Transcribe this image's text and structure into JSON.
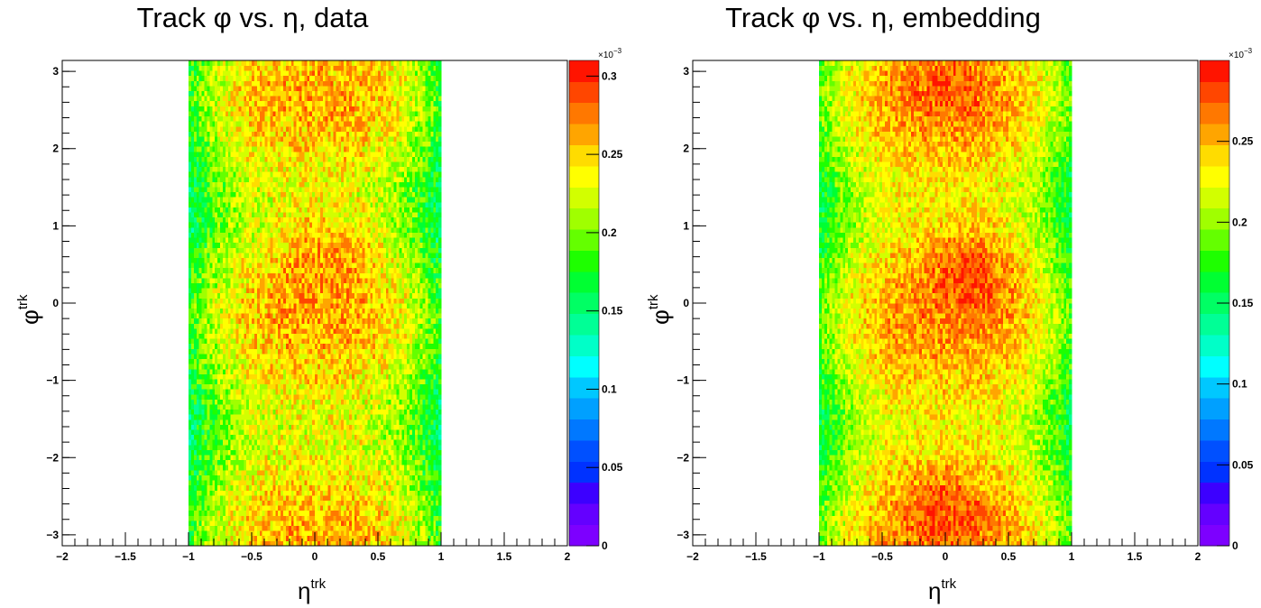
{
  "chart_data": [
    {
      "type": "heatmap",
      "title": "Track φ vs. η, data",
      "xlabel_base": "η",
      "xlabel_sup": "trk",
      "ylabel_base": "φ",
      "ylabel_sup": "trk",
      "xlim": [
        -2,
        2
      ],
      "ylim": [
        -3.14159,
        3.14159
      ],
      "x_ticks": [
        -2,
        -1.5,
        -1,
        -0.5,
        0,
        0.5,
        1,
        1.5,
        2
      ],
      "x_tick_labels": [
        "−2",
        "−1.5",
        "−1",
        "−0.5",
        "0",
        "0.5",
        "1",
        "1.5",
        "2"
      ],
      "y_ticks": [
        -3,
        -2,
        -1,
        0,
        1,
        2,
        3
      ],
      "y_tick_labels": [
        "−3",
        "−2",
        "−1",
        "0",
        "1",
        "2",
        "3"
      ],
      "filled_eta_range": [
        -1,
        1
      ],
      "colorbar": {
        "zlim": [
          0,
          0.31
        ],
        "multiplier_label": "×10",
        "multiplier_exp": "−3",
        "ticks": [
          0,
          0.05,
          0.1,
          0.15,
          0.2,
          0.25,
          0.3
        ],
        "tick_labels": [
          "0",
          "0.05",
          "0.1",
          "0.15",
          "0.2",
          "0.25",
          "0.3"
        ]
      },
      "density_profile": {
        "center_level": 0.245,
        "edge_level": 0.165,
        "phi_modulation": 0.015,
        "noise": 0.03,
        "hot_spots": [
          {
            "eta": 0.1,
            "phi": 0.7,
            "boost": 0.025
          }
        ]
      }
    },
    {
      "type": "heatmap",
      "title": "Track φ vs. η, embedding",
      "xlabel_base": "η",
      "xlabel_sup": "trk",
      "ylabel_base": "φ",
      "ylabel_sup": "trk",
      "xlim": [
        -2,
        2
      ],
      "ylim": [
        -3.14159,
        3.14159
      ],
      "x_ticks": [
        -2,
        -1.5,
        -1,
        -0.5,
        0,
        0.5,
        1,
        1.5,
        2
      ],
      "x_tick_labels": [
        "−2",
        "−1.5",
        "−1",
        "−0.5",
        "0",
        "0.5",
        "1",
        "1.5",
        "2"
      ],
      "y_ticks": [
        -3,
        -2,
        -1,
        0,
        1,
        2,
        3
      ],
      "y_tick_labels": [
        "−3",
        "−2",
        "−1",
        "0",
        "1",
        "2",
        "3"
      ],
      "filled_eta_range": [
        -1,
        1
      ],
      "colorbar": {
        "zlim": [
          0,
          0.3
        ],
        "multiplier_label": "×10",
        "multiplier_exp": "−3",
        "ticks": [
          0,
          0.05,
          0.1,
          0.15,
          0.2,
          0.25
        ],
        "tick_labels": [
          "0",
          "0.05",
          "0.1",
          "0.15",
          "0.2",
          "0.25"
        ]
      },
      "density_profile": {
        "center_level": 0.245,
        "edge_level": 0.17,
        "phi_modulation": 0.015,
        "noise": 0.025,
        "hot_spots": [
          {
            "eta": 0.2,
            "phi": 0.5,
            "boost": 0.035
          },
          {
            "eta": 0.0,
            "phi": -2.6,
            "boost": 0.025
          },
          {
            "eta": 0.0,
            "phi": 2.8,
            "boost": 0.015
          }
        ]
      }
    }
  ],
  "palette": [
    "#7d00ff",
    "#6400ff",
    "#3c00ff",
    "#0032ff",
    "#0050ff",
    "#0078ff",
    "#00a0ff",
    "#00c8ff",
    "#00ffff",
    "#00ffc8",
    "#00ff96",
    "#00ff64",
    "#00ff32",
    "#1eff00",
    "#64ff00",
    "#a0ff00",
    "#d2ff00",
    "#ffff00",
    "#ffdc00",
    "#ffa500",
    "#ff7800",
    "#ff4600",
    "#ff1400"
  ]
}
